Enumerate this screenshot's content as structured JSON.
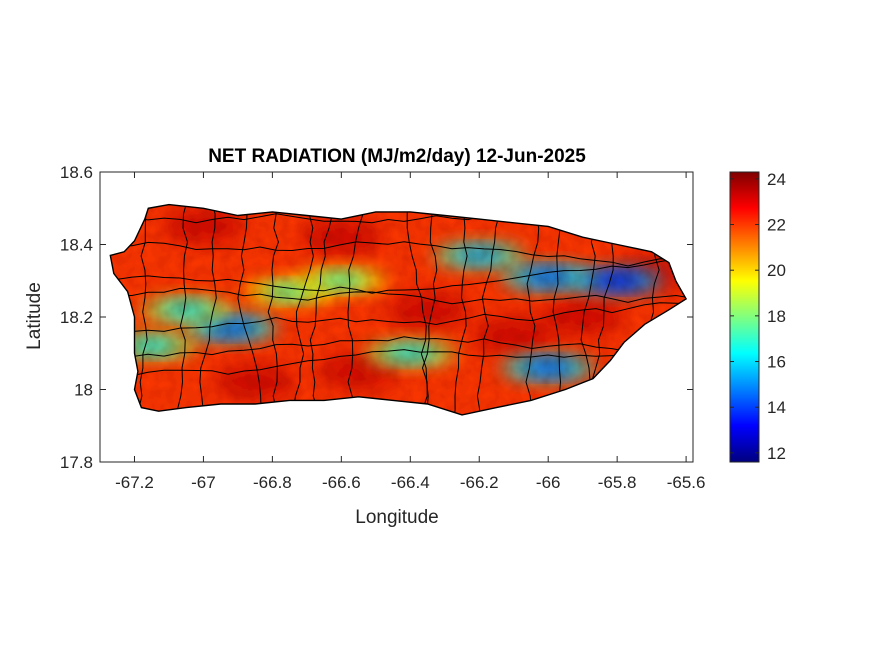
{
  "chart_data": {
    "type": "heatmap",
    "title": "NET RADIATION (MJ/m2/day) 12-Jun-2025",
    "xlabel": "Longitude",
    "ylabel": "Latitude",
    "xlim": [
      -67.3,
      -65.58
    ],
    "ylim": [
      17.8,
      18.6
    ],
    "xticks": [
      -67.2,
      -67,
      -66.8,
      -66.6,
      -66.4,
      -66.2,
      -66,
      -65.8,
      -65.6
    ],
    "xtick_labels": [
      "-67.2",
      "-67",
      "-66.8",
      "-66.6",
      "-66.4",
      "-66.2",
      "-66",
      "-65.8",
      "-65.6"
    ],
    "yticks": [
      17.8,
      18,
      18.2,
      18.4,
      18.6
    ],
    "ytick_labels": [
      "17.8",
      "18",
      "18.2",
      "18.4",
      "18.6"
    ],
    "colorbar": {
      "colormap": "jet",
      "range": [
        11.6,
        24.3
      ],
      "ticks": [
        12,
        14,
        16,
        18,
        20,
        22,
        24
      ],
      "tick_labels": [
        "12",
        "14",
        "16",
        "18",
        "20",
        "22",
        "24"
      ]
    },
    "island_outline": [
      [
        -67.27,
        18.37
      ],
      [
        -67.23,
        18.38
      ],
      [
        -67.2,
        18.41
      ],
      [
        -67.17,
        18.47
      ],
      [
        -67.16,
        18.5
      ],
      [
        -67.1,
        18.51
      ],
      [
        -67.0,
        18.5
      ],
      [
        -66.9,
        18.48
      ],
      [
        -66.8,
        18.49
      ],
      [
        -66.7,
        18.48
      ],
      [
        -66.6,
        18.47
      ],
      [
        -66.5,
        18.49
      ],
      [
        -66.4,
        18.49
      ],
      [
        -66.3,
        18.48
      ],
      [
        -66.2,
        18.47
      ],
      [
        -66.1,
        18.46
      ],
      [
        -66.0,
        18.45
      ],
      [
        -65.9,
        18.42
      ],
      [
        -65.8,
        18.4
      ],
      [
        -65.7,
        18.38
      ],
      [
        -65.65,
        18.35
      ],
      [
        -65.63,
        18.3
      ],
      [
        -65.6,
        18.25
      ],
      [
        -65.65,
        18.22
      ],
      [
        -65.72,
        18.18
      ],
      [
        -65.78,
        18.13
      ],
      [
        -65.82,
        18.08
      ],
      [
        -65.87,
        18.03
      ],
      [
        -65.95,
        18.0
      ],
      [
        -66.05,
        17.97
      ],
      [
        -66.15,
        17.95
      ],
      [
        -66.25,
        17.93
      ],
      [
        -66.35,
        17.96
      ],
      [
        -66.45,
        17.97
      ],
      [
        -66.55,
        17.98
      ],
      [
        -66.65,
        17.97
      ],
      [
        -66.75,
        17.97
      ],
      [
        -66.85,
        17.96
      ],
      [
        -66.95,
        17.96
      ],
      [
        -67.05,
        17.95
      ],
      [
        -67.13,
        17.94
      ],
      [
        -67.18,
        17.95
      ],
      [
        -67.2,
        18.0
      ],
      [
        -67.19,
        18.05
      ],
      [
        -67.2,
        18.1
      ],
      [
        -67.2,
        18.2
      ],
      [
        -67.22,
        18.27
      ],
      [
        -67.26,
        18.32
      ],
      [
        -67.27,
        18.37
      ]
    ],
    "low_value_zones": [
      {
        "lon": -66.92,
        "lat": 18.17,
        "value": 14
      },
      {
        "lon": -67.05,
        "lat": 18.22,
        "value": 16
      },
      {
        "lon": -67.15,
        "lat": 18.12,
        "value": 16
      },
      {
        "lon": -66.75,
        "lat": 18.27,
        "value": 17
      },
      {
        "lon": -66.6,
        "lat": 18.3,
        "value": 17
      },
      {
        "lon": -66.2,
        "lat": 18.37,
        "value": 15
      },
      {
        "lon": -66.0,
        "lat": 18.31,
        "value": 14
      },
      {
        "lon": -65.8,
        "lat": 18.3,
        "value": 13
      },
      {
        "lon": -66.4,
        "lat": 18.1,
        "value": 16
      },
      {
        "lon": -66.0,
        "lat": 18.06,
        "value": 14
      }
    ],
    "background_value": 22
  }
}
